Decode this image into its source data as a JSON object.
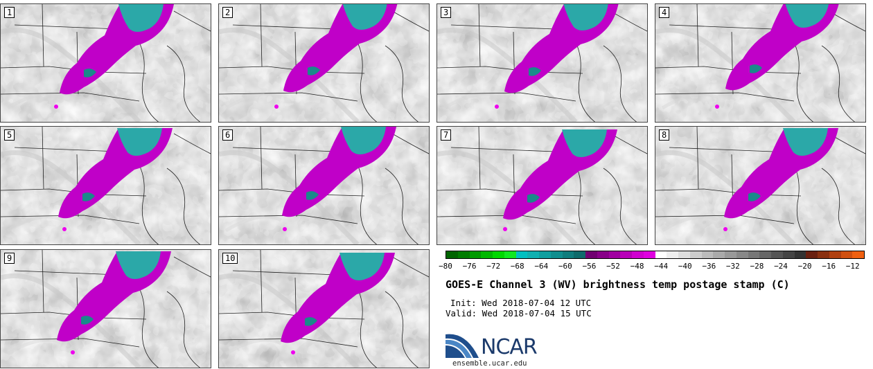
{
  "panels": [
    {
      "label": "1"
    },
    {
      "label": "2"
    },
    {
      "label": "3"
    },
    {
      "label": "4"
    },
    {
      "label": "5"
    },
    {
      "label": "6"
    },
    {
      "label": "7"
    },
    {
      "label": "8"
    },
    {
      "label": "9"
    },
    {
      "label": "10"
    }
  ],
  "colorbar": {
    "ticks": [
      "−80",
      "−76",
      "−72",
      "−68",
      "−64",
      "−60",
      "−56",
      "−52",
      "−48",
      "−44",
      "−40",
      "−36",
      "−32",
      "−28",
      "−24",
      "−20",
      "−16",
      "−12"
    ],
    "tick_values": [
      -80,
      -76,
      -72,
      -68,
      -64,
      -60,
      -56,
      -52,
      -48,
      -44,
      -40,
      -36,
      -32,
      -28,
      -24,
      -20,
      -16,
      -12
    ],
    "range": [
      -80,
      -10
    ],
    "colors": [
      "#006400",
      "#007c00",
      "#009a00",
      "#00b800",
      "#00d800",
      "#10e820",
      "#00c0c0",
      "#10b0b0",
      "#109f9f",
      "#108e8e",
      "#0f7d7d",
      "#0e6b6b",
      "#700070",
      "#880088",
      "#a000a0",
      "#b800b8",
      "#d000d0",
      "#e000e0",
      "#ffffff",
      "#eeeeee",
      "#dddddd",
      "#cccccc",
      "#bbbbbb",
      "#aaaaaa",
      "#999999",
      "#888888",
      "#777777",
      "#666666",
      "#555555",
      "#444444",
      "#333333",
      "#6a2010",
      "#8a3010",
      "#b04010",
      "#d05010",
      "#f06010"
    ]
  },
  "title": "GOES-E Channel 3 (WV) brightness temp postage stamp (C)",
  "init": "Init: Wed 2018-07-04 12 UTC",
  "valid": "Valid: Wed 2018-07-04 15 UTC",
  "logo_text": "NCAR",
  "url": "ensemble.ucar.edu"
}
